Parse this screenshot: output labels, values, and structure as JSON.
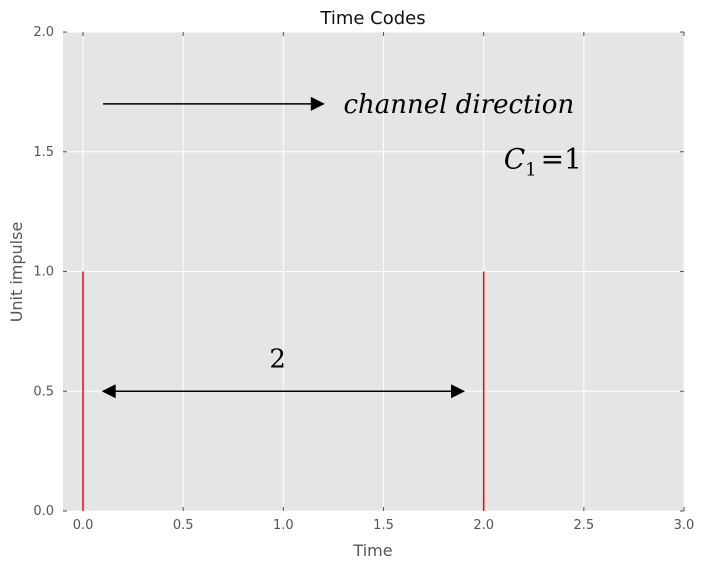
{
  "chart_data": {
    "type": "stem",
    "title": "Time Codes",
    "xlabel": "Time",
    "ylabel": "Unit impulse",
    "xlim": [
      -0.1,
      3.0
    ],
    "ylim": [
      0.0,
      2.0
    ],
    "xticks": [
      0.0,
      0.5,
      1.0,
      1.5,
      2.0,
      2.5,
      3.0
    ],
    "xtick_labels": [
      "0.0",
      "0.5",
      "1.0",
      "1.5",
      "2.0",
      "2.5",
      "3.0"
    ],
    "yticks": [
      0.0,
      0.5,
      1.0,
      1.5,
      2.0
    ],
    "ytick_labels": [
      "0.0",
      "0.5",
      "1.0",
      "1.5",
      "2.0"
    ],
    "grid": true,
    "background": "#e5e5e5",
    "stem_color": "#ff0000",
    "stems": [
      {
        "x": 0.0,
        "y": 1.0
      },
      {
        "x": 2.0,
        "y": 1.0
      }
    ],
    "annotations": [
      {
        "kind": "arrow",
        "from": [
          0.1,
          1.7
        ],
        "to": [
          1.2,
          1.7
        ],
        "heads": "end"
      },
      {
        "kind": "arrow",
        "from": [
          0.1,
          0.5
        ],
        "to": [
          1.9,
          0.5
        ],
        "heads": "both"
      },
      {
        "kind": "text",
        "text": "channel direction",
        "x": 1.3,
        "y": 1.7
      },
      {
        "kind": "text",
        "text": "2",
        "x": 0.93,
        "y": 0.6
      },
      {
        "kind": "text",
        "text": "C",
        "sub": "1",
        "suffix": "=1",
        "x": 2.1,
        "y": 1.43
      }
    ]
  }
}
